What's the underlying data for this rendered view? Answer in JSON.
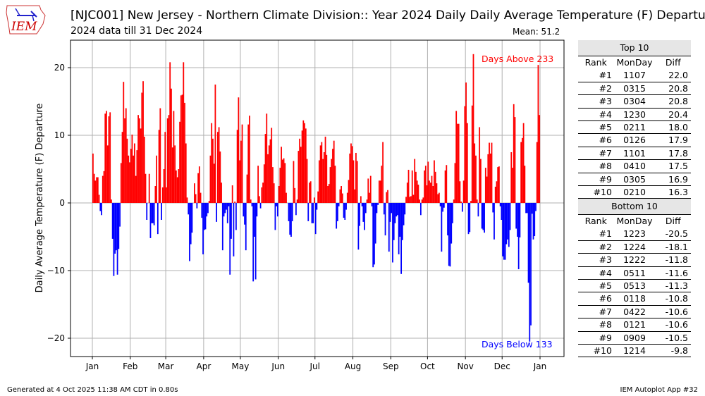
{
  "logo_text": "IEM",
  "title": "[NJC001] New Jersey - Northern Climate Division:: Year 2024 Daily Daily Average Temperature (F) Departure",
  "subtitle": "2024 data till 31 Dec 2024",
  "mean_label": "Mean: 51.2",
  "footer_left": "Generated at 4 Oct 2025 11:38 AM CDT in 0.80s",
  "footer_right": "IEM Autoplot App #32",
  "colors": {
    "above": "#ff0000",
    "below": "#0000ff",
    "grid": "#b0b0b0",
    "table_header": "#e6e6e6"
  },
  "chart_data": {
    "type": "bar",
    "title": "[NJC001] New Jersey - Northern Climate Division:: Year 2024 Daily Daily Average Temperature (F) Departure",
    "ylabel": "Daily Average Temperature (F) Departure",
    "xlabel": "",
    "ylim": [
      -22.8,
      24
    ],
    "yticks": [
      20,
      10,
      0,
      -10,
      -20
    ],
    "ytick_labels": [
      "20",
      "10",
      "0",
      "−10",
      "−20"
    ],
    "xtick_labels": [
      "Jan",
      "Feb",
      "Mar",
      "Apr",
      "May",
      "Jun",
      "Jul",
      "Aug",
      "Sep",
      "Oct",
      "Nov",
      "Dec",
      "Jan"
    ],
    "grid": true,
    "annotations": {
      "above": "Days Above 233",
      "below": "Days Below 133"
    },
    "values": [
      7.3,
      4.3,
      3.3,
      3.8,
      3.8,
      1.2,
      -1.2,
      -1.8,
      4,
      4.7,
      13.2,
      13.6,
      8.5,
      12.8,
      13.4,
      0.5,
      -5.3,
      -10.8,
      -7.5,
      -7,
      -10.6,
      -6.8,
      -3.5,
      5.9,
      10.5,
      17.9,
      12.5,
      14,
      9.5,
      7,
      6,
      8,
      10.1,
      7,
      8.8,
      4,
      7.8,
      13,
      12.5,
      11,
      16.3,
      18,
      9.8,
      4.3,
      -2.5,
      0,
      4.3,
      -5.2,
      -3,
      -3,
      -3.3,
      2.5,
      7,
      -4.6,
      10.8,
      14,
      -2.5,
      2.3,
      5,
      10.5,
      2.3,
      12.5,
      13,
      20.8,
      16.9,
      8.2,
      13.6,
      8.5,
      4.8,
      3.8,
      5,
      12,
      15.9,
      16,
      20.8,
      14.8,
      8.8,
      0.8,
      -1.7,
      -8.6,
      -6.1,
      -4.4,
      0,
      2.9,
      1.3,
      -0.8,
      4.4,
      5.4,
      1.5,
      -2.2,
      -7.6,
      -4,
      -3.9,
      -2,
      -1.5,
      0.3,
      7,
      11.8,
      9.5,
      5.8,
      17.5,
      -2.8,
      10.5,
      11.2,
      7.6,
      3,
      -7,
      -2,
      -1.5,
      -1,
      -3,
      -0.5,
      -10.6,
      -5.3,
      2.6,
      -7.9,
      0.2,
      -4,
      10.8,
      15.6,
      6.3,
      9.2,
      11.6,
      -2,
      -3.2,
      -7,
      4.2,
      11.6,
      12.9,
      0.5,
      -0.5,
      -11.6,
      -5,
      -11.3,
      -2,
      5.5,
      1,
      -0.8,
      2.3,
      3,
      5.7,
      10.2,
      13.2,
      7.2,
      8.5,
      9.4,
      11.1,
      5.3,
      2.9,
      -4,
      -0.5,
      -2,
      2.5,
      5.2,
      8.3,
      6.4,
      6.6,
      5.9,
      1.5,
      0,
      -2.7,
      -4.7,
      -5,
      -2.7,
      6.2,
      2.2,
      -1.8,
      0.5,
      7.7,
      9.5,
      8.3,
      10.7,
      12.2,
      11.8,
      11,
      6.5,
      -2.7,
      3,
      3.2,
      -3,
      -3,
      0.8,
      -4.6,
      -1,
      1.7,
      6.3,
      8.5,
      9,
      6.5,
      7.5,
      9.8,
      7.1,
      2.5,
      2.8,
      5.3,
      6.5,
      8,
      9.2,
      5.5,
      -3.8,
      -2.7,
      -0.5,
      2,
      2.5,
      1.4,
      -2.2,
      -2.5,
      -1,
      1.5,
      3.4,
      7.3,
      8.8,
      8.4,
      6.3,
      2,
      7.4,
      6.2,
      -6.9,
      -3.4,
      1,
      -0.5,
      -2.8,
      -4,
      -1.5,
      0.5,
      3.6,
      1.5,
      4,
      -0.5,
      -9.5,
      -9.1,
      -6,
      -1.5,
      -0.3,
      3.3,
      3.3,
      5.5,
      9,
      -1.7,
      -4.8,
      1.6,
      1.9,
      -7.2,
      -2.8,
      -1.5,
      -8.8,
      -5.5,
      -3,
      -2,
      -1.8,
      -7.6,
      -5,
      -10.5,
      -5.5,
      -3.3,
      -1.7,
      0.9,
      3,
      4.9,
      0.9,
      1,
      4.8,
      1.2,
      6.5,
      4.6,
      3.3,
      2.7,
      0.5,
      -1.8,
      0.5,
      0.8,
      4.8,
      5.5,
      2.6,
      6.1,
      3.3,
      3,
      4,
      2.5,
      6.3,
      4.6,
      2.9,
      1.3,
      1.5,
      -0.5,
      -7.2,
      -1.3,
      -0.7,
      4.8,
      5.6,
      -4.8,
      -9.3,
      -9.4,
      -6,
      -3,
      0.5,
      5.9,
      13.6,
      11.7,
      11.7,
      3.2,
      0.2,
      -1.3,
      3.3,
      14.3,
      17.8,
      11.8,
      -4.6,
      -4.3,
      0.3,
      14.4,
      22,
      8.8,
      7,
      0.5,
      -2,
      11.2,
      6.5,
      -3.8,
      -4,
      -4.4,
      5.2,
      3.9,
      7.2,
      8.9,
      7.3,
      8.9,
      -1.4,
      -5.4,
      2.4,
      3.2,
      5.3,
      5.4,
      -0.5,
      -2.5,
      -7.9,
      -8.4,
      -8.4,
      -6.1,
      -5.4,
      -6.5,
      -4,
      7.5,
      5.2,
      14.6,
      12.7,
      -3.8,
      -5,
      -9.8,
      -5.1,
      9,
      9.6,
      11.8,
      5.5,
      -1.5,
      -1.5,
      -11.8,
      -20.5,
      -18.1,
      -1.6,
      -5.4,
      -4.9,
      -1.2,
      9,
      20.4,
      13
    ]
  },
  "top10": {
    "header": "Top 10",
    "columns": [
      "Rank",
      "MonDay",
      "Diff"
    ],
    "rows": [
      [
        "#1",
        "1107",
        "22.0"
      ],
      [
        "#2",
        "0315",
        "20.8"
      ],
      [
        "#3",
        "0304",
        "20.8"
      ],
      [
        "#4",
        "1230",
        "20.4"
      ],
      [
        "#5",
        "0211",
        "18.0"
      ],
      [
        "#6",
        "0126",
        "17.9"
      ],
      [
        "#7",
        "1101",
        "17.8"
      ],
      [
        "#8",
        "0410",
        "17.5"
      ],
      [
        "#9",
        "0305",
        "16.9"
      ],
      [
        "#10",
        "0210",
        "16.3"
      ]
    ]
  },
  "bottom10": {
    "header": "Bottom 10",
    "columns": [
      "Rank",
      "MonDay",
      "Diff"
    ],
    "rows": [
      [
        "#1",
        "1223",
        "-20.5"
      ],
      [
        "#2",
        "1224",
        "-18.1"
      ],
      [
        "#3",
        "1222",
        "-11.8"
      ],
      [
        "#4",
        "0511",
        "-11.6"
      ],
      [
        "#5",
        "0513",
        "-11.3"
      ],
      [
        "#6",
        "0118",
        "-10.8"
      ],
      [
        "#7",
        "0422",
        "-10.6"
      ],
      [
        "#8",
        "0121",
        "-10.6"
      ],
      [
        "#9",
        "0909",
        "-10.5"
      ],
      [
        "#10",
        "1214",
        "-9.8"
      ]
    ]
  }
}
